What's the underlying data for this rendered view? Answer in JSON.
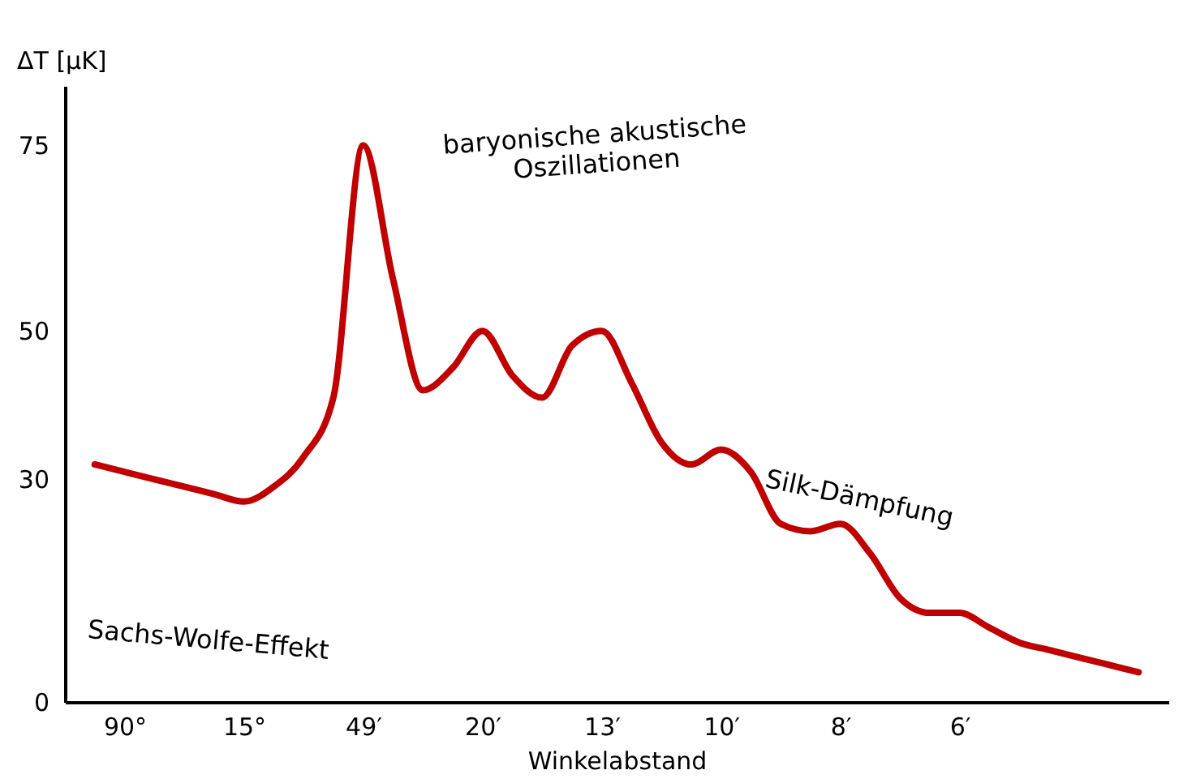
{
  "chart_data": {
    "type": "line",
    "xlabel": "Winkelabstand",
    "ylabel": "ΔT [µK]",
    "categories": [
      null,
      "90°",
      null,
      null,
      null,
      "15°",
      null,
      null,
      null,
      "49′",
      null,
      null,
      null,
      "20′",
      null,
      null,
      null,
      "13′",
      null,
      null,
      null,
      "10′",
      null,
      null,
      null,
      "8′",
      null,
      null,
      null,
      "6′",
      null,
      null,
      null,
      null,
      null,
      null
    ],
    "series": [
      {
        "color": "#c00000",
        "values": [
          32,
          31,
          30,
          29,
          28,
          27,
          29,
          33,
          41,
          75,
          57,
          42,
          45,
          50,
          44,
          41,
          48,
          50,
          43,
          35,
          32,
          34,
          31,
          24,
          23,
          24,
          20,
          14,
          12,
          12,
          10,
          8,
          7,
          6,
          5,
          4
        ]
      }
    ],
    "ylim": [
      0,
      83
    ],
    "yticks": [
      0,
      30,
      50,
      75
    ],
    "grid": false,
    "annotations": [
      "Sachs-Wolfe-Effekt",
      "baryonische akustische Oszillationen",
      "Silk-Dämpfung"
    ]
  }
}
